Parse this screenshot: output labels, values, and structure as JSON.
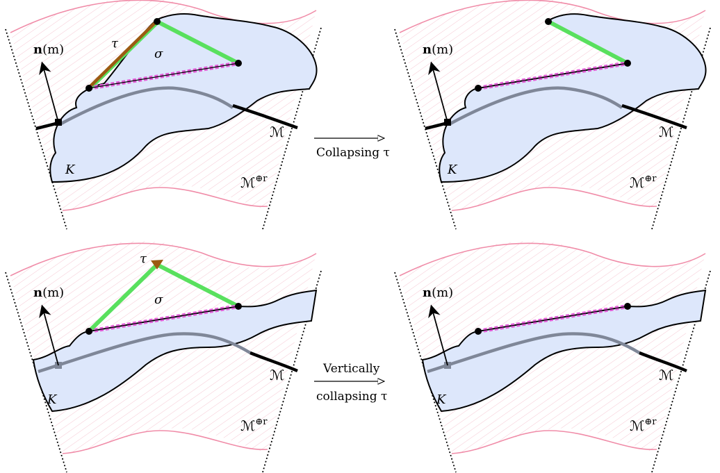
{
  "labels": {
    "normal_bold": "n",
    "normal_arg": "(m)",
    "tau": "τ",
    "sigma": "σ",
    "K": "K",
    "M": "ℳ",
    "M_off_base": "ℳ",
    "M_off_sup": "⊕r"
  },
  "arrows": {
    "top": {
      "line1": "Collapsing τ"
    },
    "bottom": {
      "line1": "Vertically",
      "line2": "collapsing τ"
    }
  },
  "colors": {
    "offset_boundary": "#f08ca8",
    "hatch": "#f6c6d2",
    "complex_fill": "#dde7fb",
    "manifold_visible": "#000000",
    "manifold_hidden": "#7f8798",
    "green_edge": "#59e05e",
    "brown_edge": "#9c5a12",
    "magenta_edge": "#e05ad6",
    "vertex": "#000000"
  }
}
